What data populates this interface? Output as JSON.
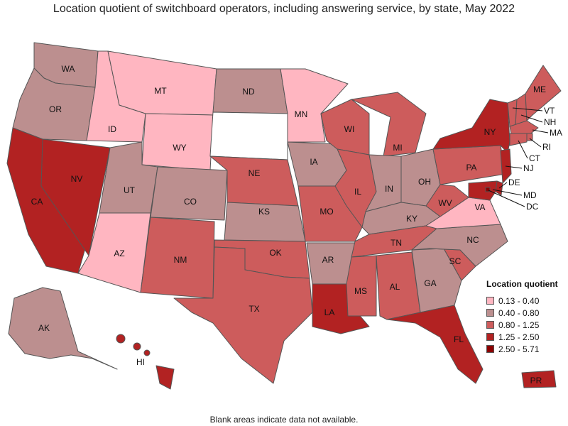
{
  "title": "Location quotient of switchboard operators, including answering service, by state, May 2022",
  "footnote": "Blank areas indicate data not available.",
  "legend": {
    "title": "Location quotient",
    "bins": [
      {
        "label": "0.13 - 0.40",
        "color": "#ffb6c1"
      },
      {
        "label": "0.40 - 0.80",
        "color": "#bc8f8f"
      },
      {
        "label": "0.80 - 1.25",
        "color": "#cd5c5c"
      },
      {
        "label": "1.25 - 2.50",
        "color": "#b22222"
      },
      {
        "label": "2.50 - 5.71",
        "color": "#8b0000"
      }
    ]
  },
  "chart_data": {
    "type": "choropleth",
    "value_type": "location quotient bin",
    "states": {
      "WA": "0.40 - 0.80",
      "OR": "0.40 - 0.80",
      "CA": "1.25 - 2.50",
      "NV": "1.25 - 2.50",
      "ID": "0.13 - 0.40",
      "MT": "0.13 - 0.40",
      "WY": "0.13 - 0.40",
      "UT": "0.40 - 0.80",
      "AZ": "0.13 - 0.40",
      "CO": "0.40 - 0.80",
      "NM": "0.80 - 1.25",
      "ND": "0.40 - 0.80",
      "SD": "no data",
      "NE": "0.80 - 1.25",
      "KS": "0.40 - 0.80",
      "OK": "0.80 - 1.25",
      "TX": "0.80 - 1.25",
      "MN": "0.13 - 0.40",
      "IA": "0.40 - 0.80",
      "MO": "0.80 - 1.25",
      "AR": "0.40 - 0.80",
      "LA": "1.25 - 2.50",
      "WI": "0.80 - 1.25",
      "IL": "0.80 - 1.25",
      "MI": "0.80 - 1.25",
      "IN": "0.40 - 0.80",
      "OH": "0.40 - 0.80",
      "KY": "0.40 - 0.80",
      "TN": "0.80 - 1.25",
      "MS": "0.80 - 1.25",
      "AL": "0.80 - 1.25",
      "GA": "0.40 - 0.80",
      "FL": "1.25 - 2.50",
      "SC": "0.80 - 1.25",
      "NC": "0.40 - 0.80",
      "VA": "0.13 - 0.40",
      "WV": "0.80 - 1.25",
      "PA": "0.80 - 1.25",
      "NY": "1.25 - 2.50",
      "VT": "0.80 - 1.25",
      "NH": "0.80 - 1.25",
      "ME": "0.80 - 1.25",
      "MA": "0.80 - 1.25",
      "RI": "0.80 - 1.25",
      "CT": "0.80 - 1.25",
      "NJ": "1.25 - 2.50",
      "DE": "1.25 - 2.50",
      "MD": "1.25 - 2.50",
      "DC": "2.50 - 5.71",
      "AK": "0.40 - 0.80",
      "HI": "1.25 - 2.50",
      "PR": "1.25 - 2.50"
    }
  }
}
